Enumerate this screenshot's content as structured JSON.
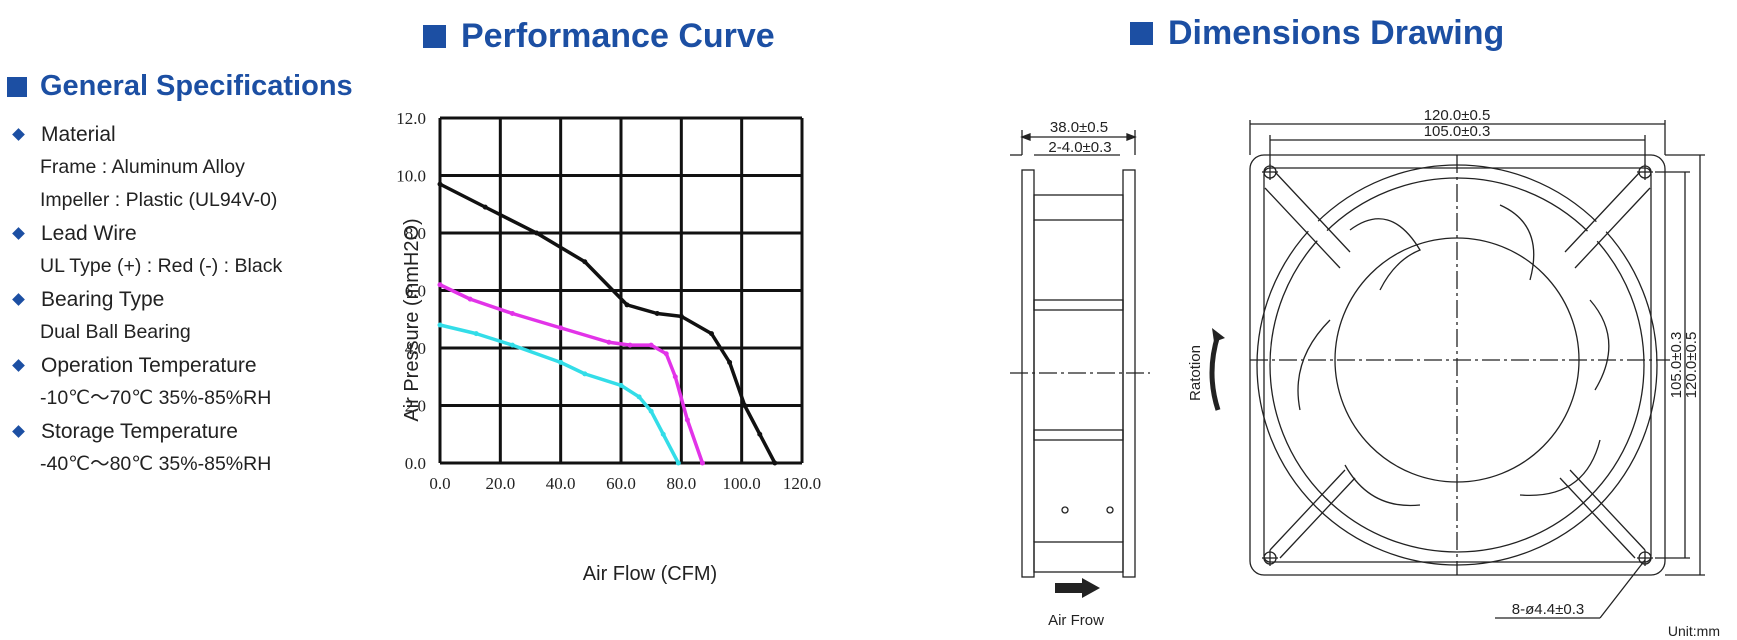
{
  "general": {
    "heading": "General Specifications",
    "items": [
      {
        "title": "Material",
        "lines": [
          "Frame : Aluminum Alloy",
          "Impeller : Plastic (UL94V-0)"
        ]
      },
      {
        "title": "Lead Wire",
        "lines": [
          "UL Type (+) : Red (-) : Black"
        ]
      },
      {
        "title": "Bearing Type",
        "lines": [
          "Dual Ball Bearing"
        ]
      },
      {
        "title": "Operation Temperature",
        "lines": [
          "-10℃～70℃ 35%-85%RH"
        ]
      },
      {
        "title": "Storage Temperature",
        "lines": [
          "-40℃～80℃ 35%-85%RH"
        ]
      }
    ]
  },
  "performance": {
    "heading": "Performance Curve"
  },
  "chart_data": {
    "type": "line",
    "xlabel": "Air Flow (CFM)",
    "ylabel": "Air Pressure (mmH2O)",
    "xlim": [
      0,
      120
    ],
    "ylim": [
      0,
      12
    ],
    "x_ticks": [
      "0.0",
      "20.0",
      "40.0",
      "60.0",
      "80.0",
      "100.0",
      "120.0"
    ],
    "y_ticks": [
      "0.0",
      "2.0",
      "4.0",
      "6.0",
      "8.0",
      "10.0",
      "12.0"
    ],
    "grid": true,
    "series": [
      {
        "color": "#111111",
        "x": [
          0,
          15,
          32,
          48,
          62,
          72,
          80,
          90,
          96,
          101,
          106,
          111
        ],
        "y": [
          9.7,
          8.9,
          8.0,
          7.0,
          5.5,
          5.2,
          5.1,
          4.5,
          3.5,
          2.0,
          1.0,
          0.0
        ]
      },
      {
        "color": "#e233e8",
        "x": [
          0,
          10,
          24,
          40,
          56,
          63,
          70,
          75,
          78,
          82,
          87
        ],
        "y": [
          6.2,
          5.7,
          5.2,
          4.7,
          4.2,
          4.1,
          4.1,
          3.8,
          3.0,
          1.5,
          0.0
        ]
      },
      {
        "color": "#33dde8",
        "x": [
          0,
          12,
          24,
          40,
          48,
          60,
          66,
          70,
          74,
          79
        ],
        "y": [
          4.8,
          4.5,
          4.1,
          3.5,
          3.1,
          2.7,
          2.3,
          1.8,
          1.0,
          0.0
        ]
      }
    ]
  },
  "dimensions": {
    "heading": "Dimensions Drawing",
    "side_depth": "38.0±0.5",
    "side_flange": "2-4.0±0.3",
    "air_flow_label": "Air Frow",
    "rotation_label": "Ratotion",
    "outer_width": "120.0±0.5",
    "hole_pitch_h": "105.0±0.3",
    "hole_pitch_v": "105.0±0.3",
    "outer_height": "120.0±0.5",
    "holes": "8-ø4.4±0.3",
    "unit": "Unit:mm"
  }
}
